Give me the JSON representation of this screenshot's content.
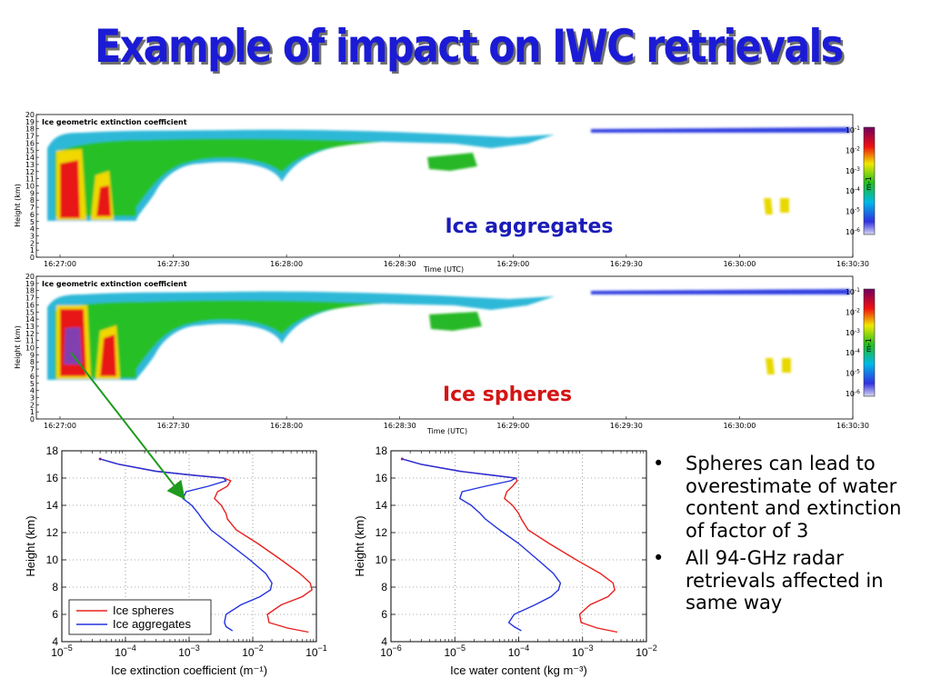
{
  "title": "Example of impact on IWC retrievals",
  "colors": {
    "title": "#1b1bd6",
    "spheres": "#e8211d",
    "aggregates": "#2332e0",
    "arrow": "#1f9a1f",
    "label_blue": "#1c1cb8",
    "label_red": "#d41515"
  },
  "chart_data": [
    {
      "type": "heatmap",
      "title": "Ice geometric extinction coefficient",
      "overlay_label": "Ice aggregates",
      "xlabel": "Time (UTC)",
      "ylabel": "Height (km)",
      "xticks": [
        "16:27:00",
        "16:27:30",
        "16:28:00",
        "16:28:30",
        "16:29:00",
        "16:29:30",
        "16:30:00",
        "16:30:30"
      ],
      "yticks": [
        "0",
        "1",
        "2",
        "3",
        "4",
        "5",
        "6",
        "7",
        "8",
        "9",
        "10",
        "11",
        "12",
        "13",
        "14",
        "15",
        "16",
        "17",
        "18",
        "19",
        "20"
      ],
      "ylim": [
        0,
        20
      ],
      "colorbar": {
        "unit": "m-1",
        "ticks": [
          "10-1",
          "10-2",
          "10-3",
          "10-4",
          "10-5",
          "10-6"
        ]
      }
    },
    {
      "type": "heatmap",
      "title": "Ice geometric extinction coefficient",
      "overlay_label": "Ice spheres",
      "xlabel": "Time (UTC)",
      "ylabel": "Height (km)",
      "xticks": [
        "16:27:00",
        "16:27:30",
        "16:28:00",
        "16:28:30",
        "16:29:00",
        "16:29:30",
        "16:30:00",
        "16:30:30"
      ],
      "yticks": [
        "0",
        "1",
        "2",
        "3",
        "4",
        "5",
        "6",
        "7",
        "8",
        "9",
        "10",
        "11",
        "12",
        "13",
        "14",
        "15",
        "16",
        "17",
        "18",
        "19",
        "20"
      ],
      "ylim": [
        0,
        20
      ],
      "colorbar": {
        "unit": "m-1",
        "ticks": [
          "10-1",
          "10-2",
          "10-3",
          "10-4",
          "10-5",
          "10-6"
        ]
      }
    },
    {
      "type": "line",
      "xlabel": "Ice extinction coefficient (m⁻¹)",
      "ylabel": "Height (km)",
      "xscale": "log",
      "xlim": [
        1e-05,
        0.1
      ],
      "ylim": [
        4,
        18
      ],
      "xticks": [
        {
          "base": "10",
          "exp": "−5"
        },
        {
          "base": "10",
          "exp": "−4"
        },
        {
          "base": "10",
          "exp": "−3"
        },
        {
          "base": "10",
          "exp": "−2"
        },
        {
          "base": "10",
          "exp": "−1"
        }
      ],
      "yticks": [
        "4",
        "6",
        "8",
        "10",
        "12",
        "14",
        "16",
        "18"
      ],
      "grid": true,
      "legend_position": "bottom-left",
      "series": [
        {
          "name": "Ice spheres",
          "color": "#e8211d",
          "points": [
            [
              4e-05,
              17.4
            ],
            [
              8e-05,
              17.0
            ],
            [
              0.0003,
              16.5
            ],
            [
              0.0012,
              16.2
            ],
            [
              0.0035,
              16.0
            ],
            [
              0.0045,
              15.8
            ],
            [
              0.004,
              15.4
            ],
            [
              0.0028,
              15.0
            ],
            [
              0.0025,
              14.5
            ],
            [
              0.0032,
              14.0
            ],
            [
              0.0038,
              13.4
            ],
            [
              0.004,
              13.0
            ],
            [
              0.0055,
              12.2
            ],
            [
              0.012,
              11.2
            ],
            [
              0.028,
              10.0
            ],
            [
              0.055,
              9.0
            ],
            [
              0.08,
              8.3
            ],
            [
              0.085,
              7.8
            ],
            [
              0.06,
              7.3
            ],
            [
              0.028,
              6.7
            ],
            [
              0.017,
              6.0
            ],
            [
              0.018,
              5.4
            ],
            [
              0.035,
              5.0
            ],
            [
              0.075,
              4.7
            ]
          ]
        },
        {
          "name": "Ice aggregates",
          "color": "#2332e0",
          "points": [
            [
              4e-05,
              17.4
            ],
            [
              8e-05,
              17.0
            ],
            [
              0.0003,
              16.5
            ],
            [
              0.0012,
              16.2
            ],
            [
              0.0035,
              16.0
            ],
            [
              0.0038,
              15.8
            ],
            [
              0.002,
              15.4
            ],
            [
              0.0009,
              15.0
            ],
            [
              0.0008,
              14.5
            ],
            [
              0.0011,
              14.0
            ],
            [
              0.0014,
              13.4
            ],
            [
              0.0016,
              13.0
            ],
            [
              0.0022,
              12.2
            ],
            [
              0.0042,
              11.2
            ],
            [
              0.009,
              10.0
            ],
            [
              0.016,
              9.0
            ],
            [
              0.02,
              8.3
            ],
            [
              0.019,
              7.8
            ],
            [
              0.013,
              7.3
            ],
            [
              0.0065,
              6.7
            ],
            [
              0.0038,
              6.0
            ],
            [
              0.0036,
              5.4
            ],
            [
              0.0038,
              5.1
            ],
            [
              0.0048,
              4.8
            ]
          ]
        }
      ]
    },
    {
      "type": "line",
      "xlabel": "Ice water content (kg m⁻³)",
      "ylabel": "Height (km)",
      "xscale": "log",
      "xlim": [
        1e-06,
        0.01
      ],
      "ylim": [
        4,
        18
      ],
      "xticks": [
        {
          "base": "10",
          "exp": "−6"
        },
        {
          "base": "10",
          "exp": "−5"
        },
        {
          "base": "10",
          "exp": "−4"
        },
        {
          "base": "10",
          "exp": "−3"
        },
        {
          "base": "10",
          "exp": "−2"
        }
      ],
      "yticks": [
        "4",
        "6",
        "8",
        "10",
        "12",
        "14",
        "16",
        "18"
      ],
      "grid": true,
      "series": [
        {
          "name": "Ice spheres",
          "color": "#e8211d",
          "points": [
            [
              1.5e-06,
              17.4
            ],
            [
              3e-06,
              17.0
            ],
            [
              1.2e-05,
              16.5
            ],
            [
              4e-05,
              16.2
            ],
            [
              9e-05,
              16.0
            ],
            [
              9.5e-05,
              15.8
            ],
            [
              8e-05,
              15.4
            ],
            [
              6.5e-05,
              15.0
            ],
            [
              6e-05,
              14.5
            ],
            [
              8e-05,
              14.0
            ],
            [
              0.0001,
              13.4
            ],
            [
              0.00011,
              13.0
            ],
            [
              0.00014,
              12.2
            ],
            [
              0.0003,
              11.2
            ],
            [
              0.0008,
              10.0
            ],
            [
              0.0019,
              9.0
            ],
            [
              0.003,
              8.3
            ],
            [
              0.0032,
              7.8
            ],
            [
              0.0025,
              7.3
            ],
            [
              0.0013,
              6.7
            ],
            [
              0.0009,
              6.0
            ],
            [
              0.00095,
              5.4
            ],
            [
              0.0017,
              5.0
            ],
            [
              0.0035,
              4.7
            ]
          ]
        },
        {
          "name": "Ice aggregates",
          "color": "#2332e0",
          "points": [
            [
              1.5e-06,
              17.4
            ],
            [
              3e-06,
              17.0
            ],
            [
              1.2e-05,
              16.5
            ],
            [
              4e-05,
              16.2
            ],
            [
              9e-05,
              16.0
            ],
            [
              7.5e-05,
              15.8
            ],
            [
              3e-05,
              15.4
            ],
            [
              1.3e-05,
              15.0
            ],
            [
              1.2e-05,
              14.5
            ],
            [
              1.8e-05,
              14.0
            ],
            [
              2.5e-05,
              13.4
            ],
            [
              3e-05,
              13.0
            ],
            [
              5e-05,
              12.2
            ],
            [
              0.0001,
              11.2
            ],
            [
              0.0002,
              10.0
            ],
            [
              0.00035,
              9.0
            ],
            [
              0.00045,
              8.3
            ],
            [
              0.00042,
              7.8
            ],
            [
              0.00032,
              7.3
            ],
            [
              0.00018,
              6.7
            ],
            [
              8.5e-05,
              6.0
            ],
            [
              7e-05,
              5.4
            ],
            [
              8.5e-05,
              5.1
            ],
            [
              0.00011,
              4.8
            ]
          ]
        }
      ]
    }
  ],
  "bullets": [
    "Spheres can lead to overestimate of water content and extinction of factor of 3",
    "All 94-GHz radar retrievals affected in same way"
  ]
}
